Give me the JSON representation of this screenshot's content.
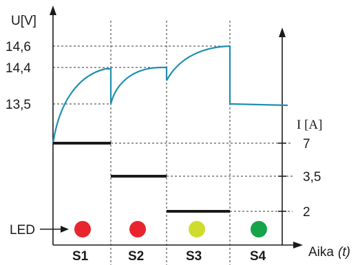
{
  "axes": {
    "voltage_label": "U[V]",
    "current_label": "I [A]",
    "time_label": "Aika",
    "time_label_unit": "(t)"
  },
  "voltage_ticks": [
    "14,6",
    "14,4",
    "13,5"
  ],
  "current_ticks": [
    "7",
    "3,5",
    "2"
  ],
  "led_label": "LED",
  "stages": [
    {
      "label": "S1",
      "led_color": "#e8252f",
      "current": 7
    },
    {
      "label": "S2",
      "led_color": "#e8252f",
      "current": 3.5
    },
    {
      "label": "S3",
      "led_color": "#cfdc2c",
      "current": 2
    },
    {
      "label": "S4",
      "led_color": "#16a34a",
      "current": null
    }
  ],
  "colors": {
    "curve": "#1e8fb0",
    "led_red": "#e8252f",
    "led_yellow": "#cfdc2c",
    "led_green": "#16a34a"
  }
}
